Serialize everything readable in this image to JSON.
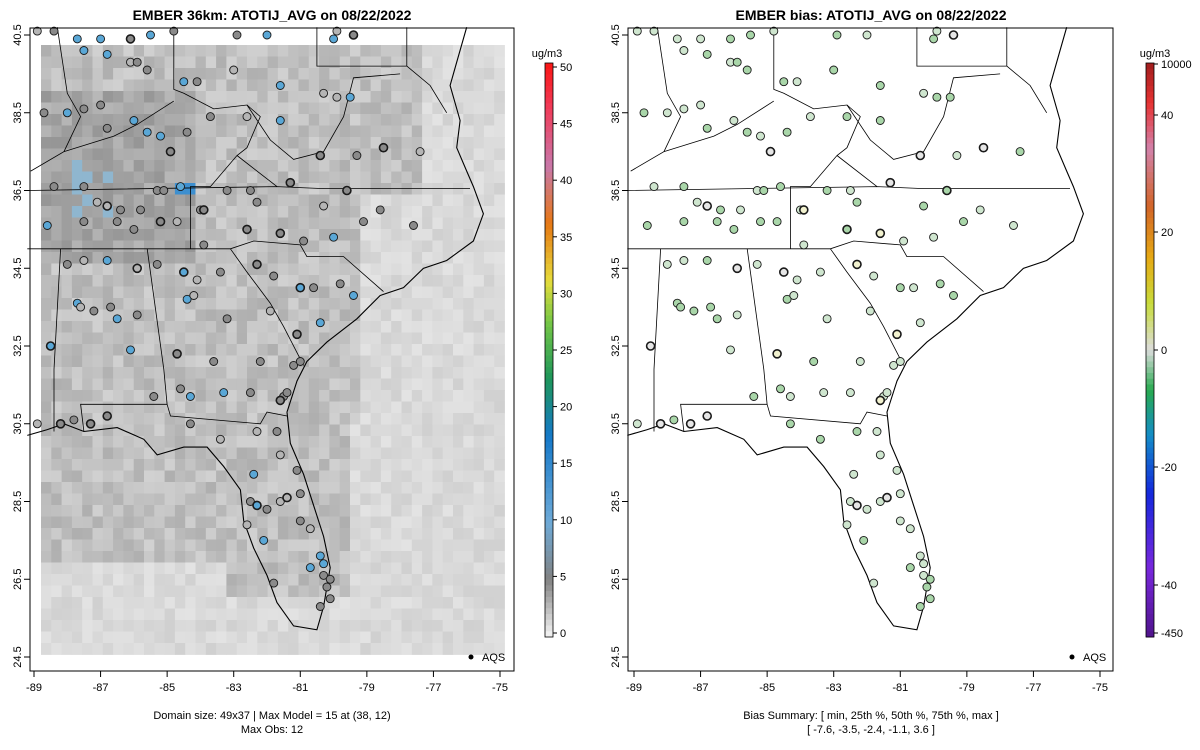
{
  "chart_data": [
    {
      "type": "heatmap",
      "title": "EMBER 36km: ATOTIJ_AVG on 08/22/2022",
      "x_ticks": [
        "-89",
        "-87",
        "-85",
        "-83",
        "-81",
        "-79",
        "-77",
        "-75"
      ],
      "y_ticks": [
        "24.5",
        "26.5",
        "28.5",
        "30.5",
        "32.5",
        "34.5",
        "36.5",
        "38.5",
        "40.5"
      ],
      "xlim": [
        -89.2,
        -74.7
      ],
      "ylim": [
        24.5,
        40.7
      ],
      "colorbar": {
        "unit": "ug/m3",
        "ticks": [
          "0",
          "5",
          "10",
          "15",
          "20",
          "25",
          "30",
          "35",
          "40",
          "45",
          "50"
        ],
        "range": [
          0,
          50
        ]
      },
      "legend": "AQS",
      "footer": [
        "Domain size: 49x37 | Max Model = 15 at (38, 12)",
        "Max Obs: 12"
      ]
    },
    {
      "type": "scatter",
      "title": "EMBER bias: ATOTIJ_AVG on 08/22/2022",
      "x_ticks": [
        "-89",
        "-87",
        "-85",
        "-83",
        "-81",
        "-79",
        "-77",
        "-75"
      ],
      "y_ticks": [
        "24.5",
        "26.5",
        "28.5",
        "30.5",
        "32.5",
        "34.5",
        "36.5",
        "38.5",
        "40.5"
      ],
      "xlim": [
        -89.2,
        -74.7
      ],
      "ylim": [
        24.5,
        40.7
      ],
      "colorbar": {
        "unit": "ug/m3",
        "ticks": [
          "10000",
          "40",
          "20",
          "0",
          "-20",
          "-40",
          "-450"
        ]
      },
      "legend": "AQS",
      "bias_summary": {
        "min": -7.6,
        "p25": -3.5,
        "p50": -2.4,
        "p75": -1.1,
        "max": 3.6
      },
      "footer": [
        "Bias Summary: [ min, 25th %, 50th %, 75th %, max ]",
        "[ -7.6,   -3.5,   -2.4,   -1.1,   3.6 ]"
      ]
    }
  ],
  "colors": {
    "map_outline": "#000000",
    "station_edge": "#1a1a1a",
    "bias_green_light": "#cfe6cf",
    "bias_green": "#9fd19f",
    "obs_blue": "#5aa7d6",
    "obs_gray": "#8a8a8a"
  }
}
